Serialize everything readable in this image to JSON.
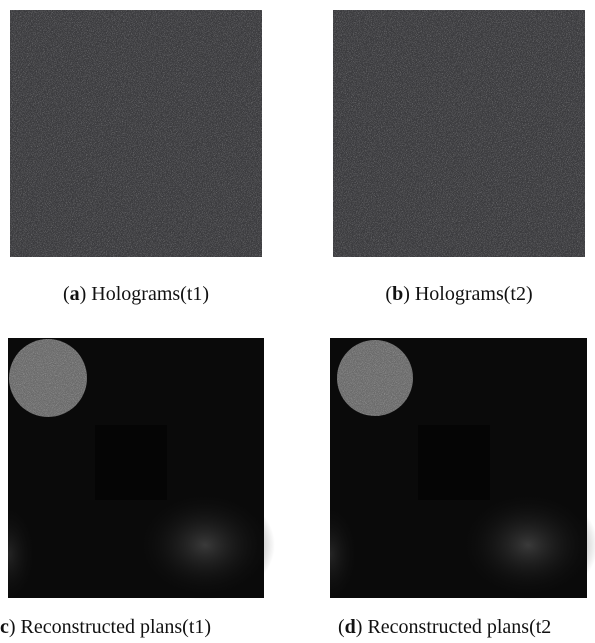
{
  "panels": [
    {
      "label": "a",
      "before": "(",
      "after": ") Holograms(t1)"
    },
    {
      "label": "b",
      "before": "(",
      "after": ") Holograms(t2)"
    },
    {
      "label": "c",
      "after": ") Reconstructed plans(t1)"
    },
    {
      "label": "d",
      "before": "(",
      "after": ") Reconstructed plans(t2"
    }
  ]
}
